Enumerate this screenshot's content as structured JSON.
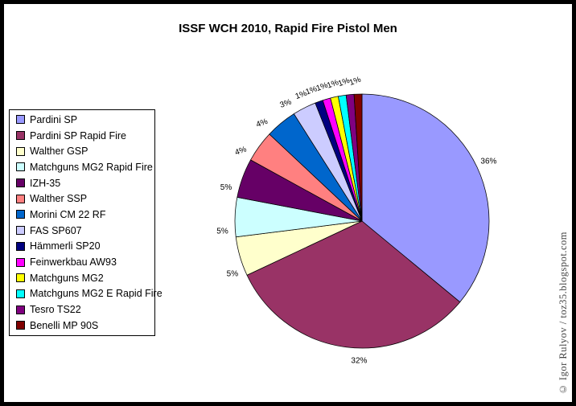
{
  "chart": {
    "title": "ISSF WCH 2010, Rapid Fire Pistol Men"
  },
  "chart_data": {
    "type": "pie",
    "title": "ISSF WCH 2010, Rapid Fire Pistol Men",
    "categories": [
      "Pardini SP",
      "Pardini SP Rapid Fire",
      "Walther GSP",
      "Matchguns MG2 Rapid Fire",
      "IZH-35",
      "Walther SSP",
      "Morini CM 22 RF",
      "FAS SP607",
      "Hämmerli SP20",
      "Feinwerkbau AW93",
      "Matchguns MG2",
      "Matchguns MG2 E Rapid Fire",
      "Tesro TS22",
      "Benelli MP 90S"
    ],
    "values": [
      36,
      32,
      5,
      5,
      5,
      4,
      4,
      3,
      1,
      1,
      1,
      1,
      1,
      1
    ],
    "unit": "%",
    "slice_labels": [
      "36%",
      "32%",
      "5%",
      "5%",
      "5%",
      "4%",
      "4%",
      "3%",
      "1%",
      "1%",
      "1%",
      "1%",
      "1%",
      "1%"
    ],
    "colors": [
      "#9999FF",
      "#993366",
      "#FFFFCC",
      "#CCFFFF",
      "#660066",
      "#FF8080",
      "#0066CC",
      "#CCCCFF",
      "#000080",
      "#FF00FF",
      "#FFFF00",
      "#00FFFF",
      "#800080",
      "#800000"
    ],
    "slice_border_color": "#000000",
    "legend_position": "left",
    "start_angle_deg": 0,
    "direction": "clockwise"
  },
  "watermark": {
    "text": "© Igor Rulyov / toz35.blogspot.com",
    "color": "#444444"
  }
}
